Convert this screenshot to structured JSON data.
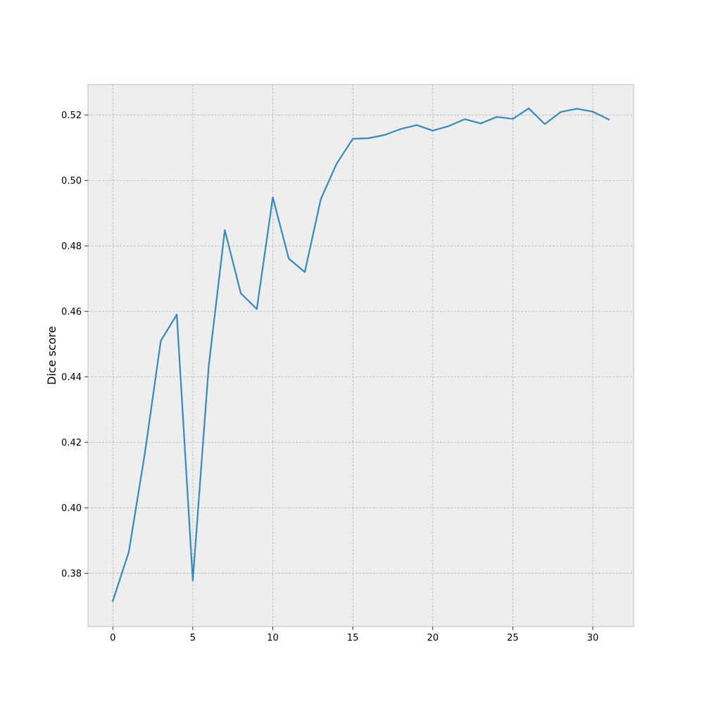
{
  "chart_data": {
    "type": "line",
    "title": "",
    "xlabel": "",
    "ylabel": "Dice score",
    "xlim": [
      -1.55,
      32.55
    ],
    "ylim": [
      0.3637,
      0.5293
    ],
    "xticks": [
      0,
      5,
      10,
      15,
      20,
      25,
      30
    ],
    "yticks": [
      0.38,
      0.4,
      0.42,
      0.44,
      0.46,
      0.48,
      0.5,
      0.52
    ],
    "grid": true,
    "colors": {
      "line": "#348abd",
      "plot_background": "#eeeeee",
      "frame": "#bcbcbc"
    },
    "series": [
      {
        "x": [
          0,
          1,
          2,
          3,
          4,
          5,
          6,
          7,
          8,
          9,
          10,
          11,
          12,
          13,
          14,
          15,
          16,
          17,
          18,
          19,
          20,
          21,
          22,
          23,
          24,
          25,
          26,
          27,
          28,
          29,
          30,
          31
        ],
        "values": [
          0.3715,
          0.3865,
          0.4165,
          0.451,
          0.459,
          0.3778,
          0.4435,
          0.4848,
          0.4655,
          0.4607,
          0.4948,
          0.4761,
          0.472,
          0.4943,
          0.5052,
          0.5127,
          0.5129,
          0.5139,
          0.5157,
          0.5169,
          0.5152,
          0.5166,
          0.5187,
          0.5174,
          0.5194,
          0.5188,
          0.522,
          0.5172,
          0.5209,
          0.5219,
          0.521,
          0.5186
        ]
      }
    ]
  }
}
